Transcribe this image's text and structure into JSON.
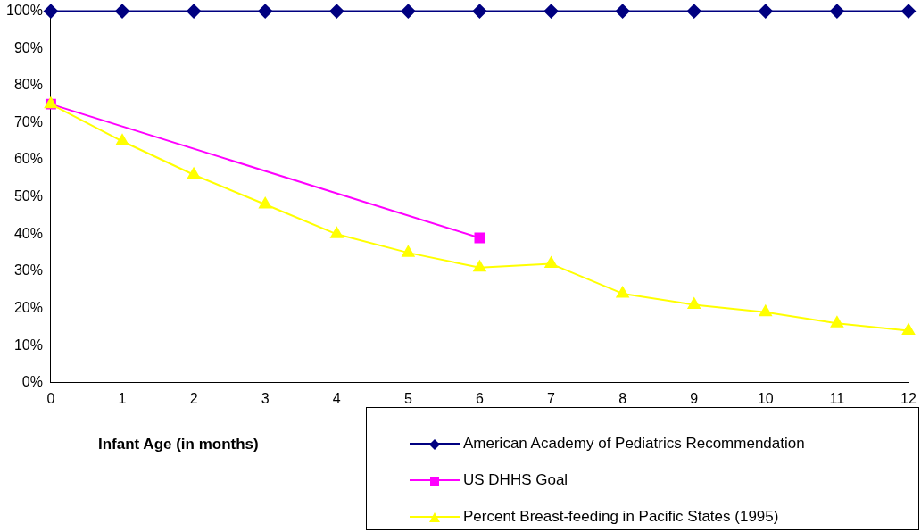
{
  "chart_data": {
    "type": "line",
    "xlabel": "Infant Age (in months)",
    "xlim": [
      0,
      12
    ],
    "xticks": [
      0,
      1,
      2,
      3,
      4,
      5,
      6,
      7,
      8,
      9,
      10,
      11,
      12
    ],
    "ylim": [
      0,
      100
    ],
    "yticks": [
      {
        "value": 0,
        "label": "0%"
      },
      {
        "value": 10,
        "label": "10%"
      },
      {
        "value": 20,
        "label": "20%"
      },
      {
        "value": 30,
        "label": "30%"
      },
      {
        "value": 40,
        "label": "40%"
      },
      {
        "value": 50,
        "label": "50%"
      },
      {
        "value": 60,
        "label": "60%"
      },
      {
        "value": 70,
        "label": "70%"
      },
      {
        "value": 80,
        "label": "80%"
      },
      {
        "value": 90,
        "label": "90%"
      },
      {
        "value": 100,
        "label": "100%"
      }
    ],
    "grid": false,
    "legend": "bottom right",
    "series": [
      {
        "name": "American Academy of Pediatrics Recommendation",
        "color": "#000080",
        "marker": "diamond",
        "x": [
          0,
          1,
          2,
          3,
          4,
          5,
          6,
          7,
          8,
          9,
          10,
          11,
          12
        ],
        "values": [
          100,
          100,
          100,
          100,
          100,
          100,
          100,
          100,
          100,
          100,
          100,
          100,
          100
        ]
      },
      {
        "name": "US DHHS Goal",
        "color": "#ff00ff",
        "marker": "square",
        "x": [
          0,
          6
        ],
        "values": [
          75,
          39
        ]
      },
      {
        "name": "Percent Breast-feeding in Pacific States (1995)",
        "color": "#ffff00",
        "marker": "triangle",
        "x": [
          0,
          1,
          2,
          3,
          4,
          5,
          6,
          7,
          8,
          9,
          10,
          11,
          12
        ],
        "values": [
          75,
          65,
          56,
          48,
          40,
          35,
          31,
          32,
          24,
          21,
          19,
          16,
          14
        ]
      }
    ]
  }
}
